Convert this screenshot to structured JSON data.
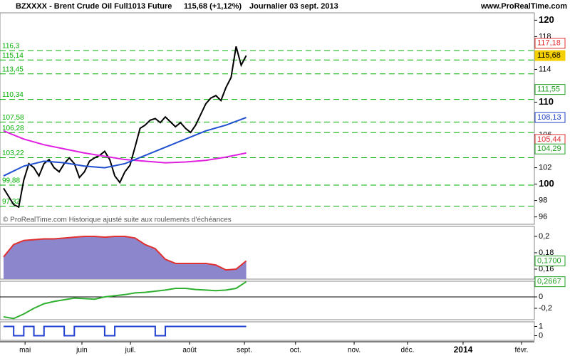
{
  "header": {
    "symbol": "BZXXXX - Brent Crude Oil Full1013 Future",
    "price": "115,68 (+1,12%)",
    "period": "Journalier  03 sept. 2013",
    "site": "www.ProRealTime.com"
  },
  "chart_data": [
    {
      "type": "line",
      "annotation": "© ProRealTime.com  Historique ajusté suite aux roulements d'échéances",
      "xlim": [
        0,
        210
      ],
      "xticks": [
        {
          "value": 8.5,
          "label": "mai"
        },
        {
          "value": 31,
          "label": "juin"
        },
        {
          "value": 50.2,
          "label": "juil."
        },
        {
          "value": 73.6,
          "label": "août"
        },
        {
          "value": 95.3,
          "label": "sept."
        },
        {
          "value": 115.5,
          "label": "oct."
        },
        {
          "value": 138.7,
          "label": "nov."
        },
        {
          "value": 159.8,
          "label": "déc."
        },
        {
          "value": 181.8,
          "label": "2014"
        },
        {
          "value": 204.9,
          "label": "févr."
        }
      ],
      "ylim": [
        95.1,
        120.9
      ],
      "yticks": [
        96,
        98,
        100,
        102,
        106,
        110,
        114,
        118,
        120
      ],
      "levels": [
        {
          "value": 116.3,
          "label": "116,3"
        },
        {
          "value": 115.14,
          "label": "115,14"
        },
        {
          "value": 113.45,
          "label": "113,45"
        },
        {
          "value": 110.34,
          "label": "110,34"
        },
        {
          "value": 107.58,
          "label": "107,58"
        },
        {
          "value": 106.28,
          "label": "106,28"
        },
        {
          "value": 103.22,
          "label": "103,22"
        },
        {
          "value": 99.88,
          "label": "99,88"
        },
        {
          "value": 97.32,
          "label": "97,32"
        }
      ],
      "level_color": "#00b000",
      "price_labels": [
        {
          "value": 117.18,
          "label": "117,18",
          "color": "#e03030"
        },
        {
          "value": 115.68,
          "label": "115,68",
          "color": "#f5d000"
        },
        {
          "value": 111.55,
          "label": "111,55",
          "color": "#20a020"
        },
        {
          "value": 108.13,
          "label": "108,13",
          "color": "#2040c0"
        },
        {
          "value": 105.44,
          "label": "105,44",
          "color": "#e03030"
        },
        {
          "value": 104.29,
          "label": "104,29",
          "color": "#20a020"
        }
      ],
      "series": [
        {
          "color": "#000000",
          "x": [
            0,
            2,
            4,
            6,
            8,
            10,
            12,
            14,
            16,
            18,
            20,
            22,
            24,
            26,
            28,
            30,
            32,
            34,
            36,
            38,
            40,
            42,
            44,
            46,
            48,
            50,
            52,
            54,
            56,
            58,
            60,
            62,
            64,
            66,
            68,
            70,
            72,
            74,
            76,
            78,
            80,
            82,
            84,
            86,
            88,
            90,
            92,
            94,
            96
          ],
          "values": [
            99.5,
            98.5,
            97.5,
            97.2,
            100.5,
            102.5,
            102.0,
            101.0,
            102.5,
            103.0,
            102.0,
            101.5,
            102.5,
            103.2,
            102.5,
            100.8,
            101.5,
            102.8,
            103.2,
            103.5,
            104.0,
            103.0,
            101.0,
            100.2,
            101.5,
            102.3,
            104.5,
            106.8,
            107.2,
            107.8,
            108.0,
            107.5,
            108.2,
            107.6,
            107.0,
            107.5,
            106.8,
            106.3,
            107.2,
            108.5,
            109.8,
            110.5,
            110.8,
            110.2,
            111.8,
            113.0,
            116.8,
            114.5,
            115.68
          ]
        },
        {
          "color": "#e020e0",
          "x": [
            0,
            8,
            16,
            24,
            32,
            40,
            48,
            56,
            64,
            72,
            80,
            88,
            96
          ],
          "values": [
            106.5,
            105.5,
            104.8,
            104.3,
            103.8,
            103.4,
            103.0,
            102.8,
            102.6,
            102.7,
            102.9,
            103.3,
            103.8
          ]
        },
        {
          "color": "#2050d0",
          "x": [
            0,
            8,
            16,
            24,
            32,
            40,
            48,
            56,
            64,
            72,
            80,
            88,
            96
          ],
          "values": [
            101.0,
            102.2,
            102.8,
            102.6,
            102.2,
            102.0,
            102.5,
            103.5,
            104.5,
            105.5,
            106.5,
            107.2,
            108.13
          ]
        }
      ]
    },
    {
      "type": "area",
      "xlim": [
        0,
        210
      ],
      "ylim": [
        0.1478,
        0.2122
      ],
      "yticks": [
        {
          "value": 0.2,
          "label": "0,2"
        },
        {
          "value": 0.18,
          "label": "0,18"
        },
        {
          "value": 0.16,
          "label": "0,16"
        }
      ],
      "price_labels": [
        {
          "value": 0.17,
          "label": "0,1700",
          "color": "#20a020"
        }
      ],
      "series": [
        {
          "color": "#e03030",
          "fill": "#8c86cc",
          "x": [
            0,
            4,
            8,
            12,
            16,
            20,
            24,
            28,
            32,
            36,
            40,
            44,
            48,
            52,
            56,
            60,
            64,
            68,
            72,
            76,
            80,
            84,
            88,
            92,
            96
          ],
          "values": [
            0.175,
            0.19,
            0.195,
            0.196,
            0.197,
            0.197,
            0.198,
            0.199,
            0.2,
            0.2,
            0.199,
            0.2,
            0.2,
            0.198,
            0.19,
            0.185,
            0.172,
            0.167,
            0.167,
            0.167,
            0.167,
            0.165,
            0.159,
            0.16,
            0.17
          ]
        }
      ]
    },
    {
      "type": "line",
      "xlim": [
        0,
        210
      ],
      "ylim": [
        -0.4,
        0.275
      ],
      "yticks": [
        0,
        {
          "value": -0.2,
          "label": "-0,2"
        }
      ],
      "price_labels": [
        {
          "value": 0.2667,
          "label": "0,2667",
          "color": "#20a020"
        }
      ],
      "series": [
        {
          "color": "#30b030",
          "x": [
            0,
            4,
            8,
            12,
            16,
            20,
            24,
            28,
            32,
            36,
            40,
            44,
            48,
            52,
            56,
            60,
            64,
            68,
            72,
            76,
            80,
            84,
            88,
            92,
            96
          ],
          "values": [
            -0.35,
            -0.38,
            -0.3,
            -0.2,
            -0.12,
            -0.08,
            -0.05,
            -0.02,
            -0.03,
            -0.04,
            0.0,
            0.02,
            0.04,
            0.07,
            0.08,
            0.1,
            0.12,
            0.15,
            0.15,
            0.13,
            0.12,
            0.11,
            0.12,
            0.15,
            0.2667
          ]
        }
      ]
    },
    {
      "type": "step",
      "xlim": [
        0,
        210
      ],
      "ylim": [
        -0.5,
        1.5
      ],
      "yticks": [
        0,
        1
      ],
      "series": [
        {
          "color": "#2040d0",
          "x": [
            0,
            4,
            8,
            12,
            16,
            20,
            24,
            28,
            32,
            36,
            40,
            44,
            48,
            52,
            56,
            60,
            64,
            68,
            72,
            76,
            80,
            84,
            88,
            92,
            96
          ],
          "values": [
            1,
            0,
            1,
            0,
            1,
            1,
            0,
            1,
            1,
            1,
            0,
            1,
            1,
            1,
            1,
            0,
            1,
            1,
            1,
            1,
            1,
            1,
            1,
            1,
            1
          ]
        }
      ]
    }
  ]
}
